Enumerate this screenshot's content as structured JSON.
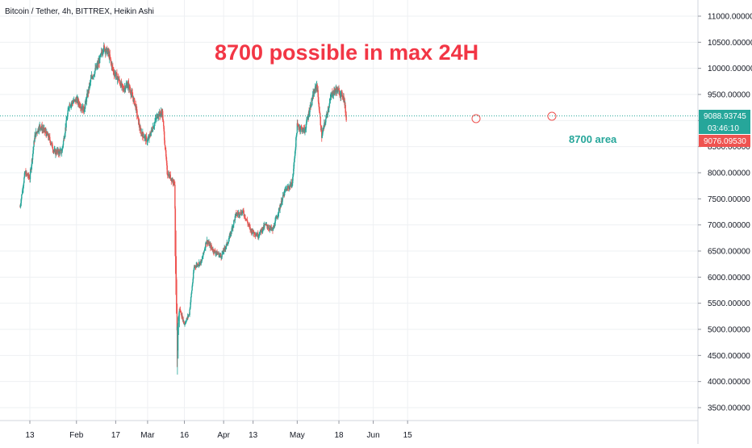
{
  "chart_data": {
    "type": "candlestick",
    "title": "Bitcoin / Tether, 4h, BITTREX, Heikin Ashi",
    "ylim": [
      3300,
      11200
    ],
    "yticks": [
      "3500.00000",
      "4000.00000",
      "4500.00000",
      "5000.00000",
      "5500.00000",
      "6000.00000",
      "6500.00000",
      "7000.00000",
      "7500.00000",
      "8000.00000",
      "8500.00000",
      "9000.00000",
      "9500.00000",
      "10000.00000",
      "10500.00000",
      "11000.00000"
    ],
    "xticks": [
      "13",
      "Feb",
      "17",
      "Mar",
      "16",
      "Apr",
      "13",
      "May",
      "18",
      "Jun",
      "15"
    ],
    "price_path": [
      [
        "Jan 9",
        7350
      ],
      [
        "Jan 11",
        8000
      ],
      [
        "Jan 13",
        7900
      ],
      [
        "Jan 15",
        8700
      ],
      [
        "Jan 17",
        8900
      ],
      [
        "Jan 19",
        8800
      ],
      [
        "Jan 21",
        8650
      ],
      [
        "Jan 23",
        8400
      ],
      [
        "Jan 26",
        8400
      ],
      [
        "Jan 29",
        9300
      ],
      [
        "Feb 1",
        9400
      ],
      [
        "Feb 4",
        9200
      ],
      [
        "Feb 7",
        9800
      ],
      [
        "Feb 10",
        10100
      ],
      [
        "Feb 12",
        10400
      ],
      [
        "Feb 14",
        10300
      ],
      [
        "Feb 16",
        9950
      ],
      [
        "Feb 18",
        9800
      ],
      [
        "Feb 20",
        9600
      ],
      [
        "Feb 22",
        9700
      ],
      [
        "Feb 25",
        9300
      ],
      [
        "Feb 27",
        8800
      ],
      [
        "Mar 1",
        8600
      ],
      [
        "Mar 3",
        8850
      ],
      [
        "Mar 5",
        9100
      ],
      [
        "Mar 7",
        9150
      ],
      [
        "Mar 9",
        8000
      ],
      [
        "Mar 12",
        7800
      ],
      [
        "Mar 13",
        5000
      ],
      [
        "Mar 14",
        5400
      ],
      [
        "Mar 16",
        5100
      ],
      [
        "Mar 18",
        5300
      ],
      [
        "Mar 20",
        6200
      ],
      [
        "Mar 23",
        6300
      ],
      [
        "Mar 25",
        6700
      ],
      [
        "Mar 28",
        6500
      ],
      [
        "Mar 31",
        6400
      ],
      [
        "Apr 3",
        6700
      ],
      [
        "Apr 6",
        7200
      ],
      [
        "Apr 9",
        7250
      ],
      [
        "Apr 12",
        6900
      ],
      [
        "Apr 15",
        6800
      ],
      [
        "Apr 18",
        7000
      ],
      [
        "Apr 21",
        6900
      ],
      [
        "Apr 23",
        7200
      ],
      [
        "Apr 26",
        7650
      ],
      [
        "Apr 29",
        7800
      ],
      [
        "May 1",
        8900
      ],
      [
        "May 4",
        8800
      ],
      [
        "May 7",
        9400
      ],
      [
        "May 9",
        9700
      ],
      [
        "May 11",
        8700
      ],
      [
        "May 13",
        9100
      ],
      [
        "May 15",
        9500
      ],
      [
        "May 17",
        9600
      ],
      [
        "May 19",
        9500
      ],
      [
        "May 20",
        9450
      ],
      [
        "May 21",
        9050
      ]
    ],
    "current_price": "9088.93745",
    "countdown": "03:46:10",
    "last_candle_price": "9076.09530",
    "colors": {
      "up": "#26a69a",
      "down": "#ef5350",
      "price_line": "#26a69a",
      "annotation": "#f23645"
    }
  },
  "annotations": {
    "headline": "8700 possible in max 24H",
    "target_label": "8700 area"
  }
}
